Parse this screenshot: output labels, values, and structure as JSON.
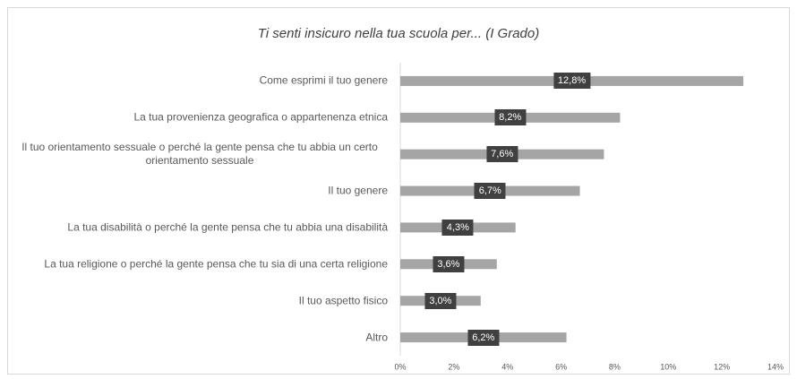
{
  "chart_data": {
    "type": "bar",
    "orientation": "horizontal",
    "title": "Ti senti insicuro nella tua scuola per... (I Grado)",
    "categories": [
      "Come esprimi il tuo genere",
      "La tua provenienza geografica o appartenenza etnica",
      "Il tuo orientamento sessuale o perché la gente pensa che tu abbia un certo orientamento sessuale",
      "Il tuo genere",
      "La tua disabilità o perché la gente pensa che tu abbia una disabilità",
      "La tua religione o perché la gente pensa che tu sia di una certa religione",
      "Il tuo aspetto fisico",
      "Altro"
    ],
    "values": [
      12.8,
      8.2,
      7.6,
      6.7,
      4.3,
      3.6,
      3.0,
      6.2
    ],
    "value_labels": [
      "12,8%",
      "8,2%",
      "7,6%",
      "6,7%",
      "4,3%",
      "3,6%",
      "3,0%",
      "6,2%"
    ],
    "color": "#a5a5a5",
    "xlim": [
      0,
      14
    ],
    "xticks": [
      {
        "value": 0,
        "label": "0%"
      },
      {
        "value": 2,
        "label": "2%"
      },
      {
        "value": 4,
        "label": "4%"
      },
      {
        "value": 6,
        "label": "6%"
      },
      {
        "value": 8,
        "label": "8%"
      },
      {
        "value": 10,
        "label": "10%"
      },
      {
        "value": 12,
        "label": "12%"
      },
      {
        "value": 14,
        "label": "14%"
      }
    ],
    "grid": false
  }
}
